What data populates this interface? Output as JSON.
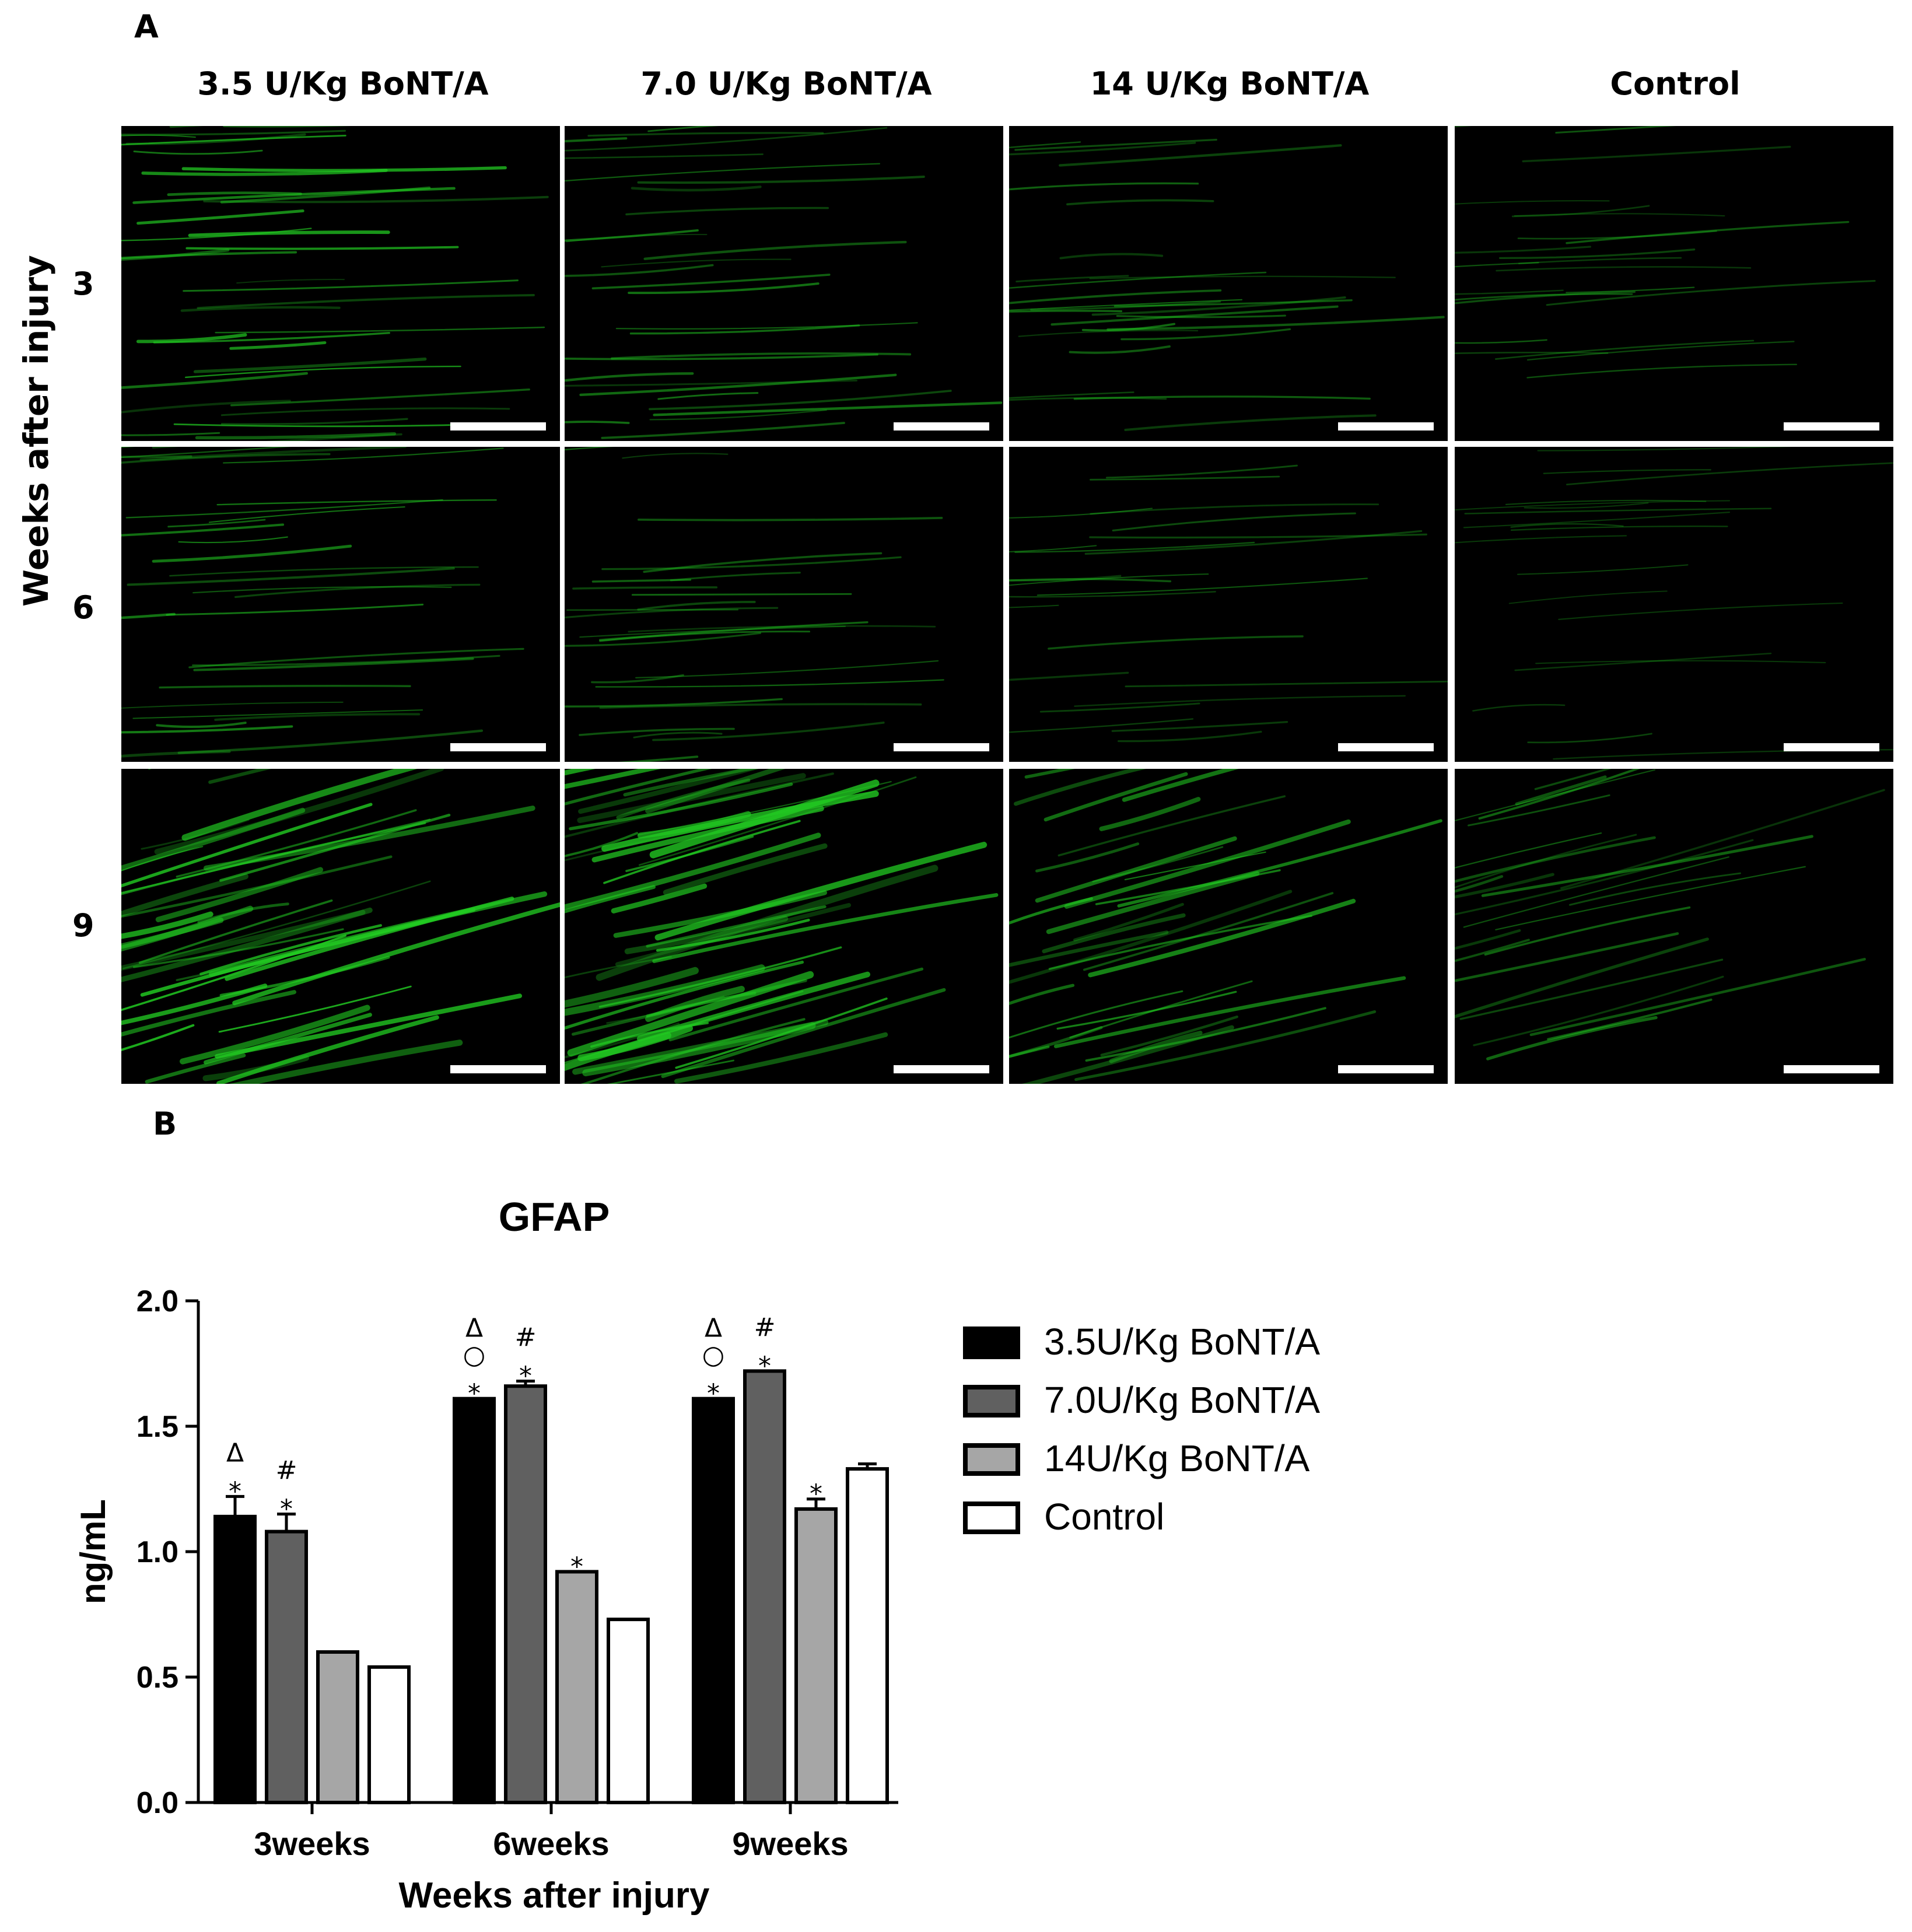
{
  "panel_a": {
    "letter": "A",
    "columns": [
      "3.5 U/Kg BoNT/A",
      "7.0 U/Kg BoNT/A",
      "14 U/Kg BoNT/A",
      "Control"
    ],
    "rows": [
      "3",
      "6",
      "9"
    ],
    "side_label": "Weeks after injury",
    "fluorescence_color": "#22cc22"
  },
  "panel_b": {
    "letter": "B"
  },
  "chart_data": {
    "type": "bar",
    "title": "GFAP",
    "xlabel": "Weeks after injury",
    "ylabel": "ng/mL",
    "ylim": [
      0,
      2.0
    ],
    "yticks": [
      "0.0",
      "0.5",
      "1.0",
      "1.5",
      "2.0"
    ],
    "categories": [
      "3weeks",
      "6weeks",
      "9weeks"
    ],
    "series": [
      {
        "name": "3.5U/Kg BoNT/A",
        "color": "#000000",
        "values": [
          1.14,
          1.61,
          1.61
        ],
        "errors": [
          0.08,
          0.0,
          0.0
        ],
        "annotations": [
          [
            "Δ",
            "*"
          ],
          [
            "Δ",
            "○",
            "*"
          ],
          [
            "Δ",
            "○",
            "*"
          ]
        ]
      },
      {
        "name": "7.0U/Kg BoNT/A",
        "color": "#606060",
        "values": [
          1.08,
          1.66,
          1.72
        ],
        "errors": [
          0.07,
          0.02,
          0.0
        ],
        "annotations": [
          [
            "#",
            "*"
          ],
          [
            "#",
            "*"
          ],
          [
            "#",
            "*"
          ]
        ]
      },
      {
        "name": "14U/Kg BoNT/A",
        "color": "#a6a6a6",
        "values": [
          0.6,
          0.92,
          1.17
        ],
        "errors": [
          0.0,
          0.0,
          0.04
        ],
        "annotations": [
          [],
          [
            "*"
          ],
          [
            "*"
          ]
        ]
      },
      {
        "name": "Control",
        "color": "#ffffff",
        "values": [
          0.54,
          0.73,
          1.33
        ],
        "errors": [
          0.0,
          0.0,
          0.02
        ],
        "annotations": [
          [],
          [],
          []
        ]
      }
    ],
    "legend_position": "right"
  }
}
